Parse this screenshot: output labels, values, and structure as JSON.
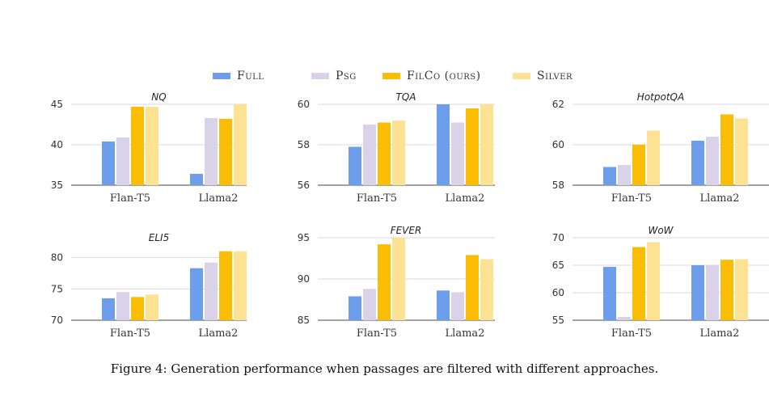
{
  "chart_data": [
    {
      "type": "bar",
      "title": "NQ",
      "categories": [
        "Flan-T5",
        "Llama2"
      ],
      "ylim": [
        35,
        45
      ],
      "yticks": [
        35,
        40,
        45
      ],
      "series": [
        {
          "name": "Full",
          "values": [
            40.4,
            36.4
          ]
        },
        {
          "name": "Psg",
          "values": [
            40.9,
            43.3
          ]
        },
        {
          "name": "FilCo (ours)",
          "values": [
            44.7,
            43.2
          ]
        },
        {
          "name": "Silver",
          "values": [
            44.7,
            45.0
          ]
        }
      ]
    },
    {
      "type": "bar",
      "title": "TQA",
      "categories": [
        "Flan-T5",
        "Llama2"
      ],
      "ylim": [
        56,
        60
      ],
      "yticks": [
        56,
        58,
        60
      ],
      "series": [
        {
          "name": "Full",
          "values": [
            57.9,
            60.0
          ]
        },
        {
          "name": "Psg",
          "values": [
            59.0,
            59.1
          ]
        },
        {
          "name": "FilCo (ours)",
          "values": [
            59.1,
            59.8
          ]
        },
        {
          "name": "Silver",
          "values": [
            59.2,
            60.0
          ]
        }
      ]
    },
    {
      "type": "bar",
      "title": "HotpotQA",
      "categories": [
        "Flan-T5",
        "Llama2"
      ],
      "ylim": [
        58,
        62
      ],
      "yticks": [
        58,
        60,
        62
      ],
      "series": [
        {
          "name": "Full",
          "values": [
            58.9,
            60.2
          ]
        },
        {
          "name": "Psg",
          "values": [
            59.0,
            60.4
          ]
        },
        {
          "name": "FilCo (ours)",
          "values": [
            60.0,
            61.5
          ]
        },
        {
          "name": "Silver",
          "values": [
            60.7,
            61.3
          ]
        }
      ]
    },
    {
      "type": "bar",
      "title": "ELI5",
      "categories": [
        "Flan-T5",
        "Llama2"
      ],
      "ylim": [
        70,
        82
      ],
      "yticks": [
        70,
        75,
        80
      ],
      "series": [
        {
          "name": "Full",
          "values": [
            73.5,
            78.3
          ]
        },
        {
          "name": "Psg",
          "values": [
            74.5,
            79.2
          ]
        },
        {
          "name": "FilCo (ours)",
          "values": [
            73.7,
            81.0
          ]
        },
        {
          "name": "Silver",
          "values": [
            74.1,
            81.0
          ]
        }
      ]
    },
    {
      "type": "bar",
      "title": "FEVER",
      "categories": [
        "Flan-T5",
        "Llama2"
      ],
      "ylim": [
        85,
        95
      ],
      "yticks": [
        85,
        90,
        95
      ],
      "series": [
        {
          "name": "Full",
          "values": [
            87.9,
            88.6
          ]
        },
        {
          "name": "Psg",
          "values": [
            88.8,
            88.4
          ]
        },
        {
          "name": "FilCo (ours)",
          "values": [
            94.2,
            92.9
          ]
        },
        {
          "name": "Silver",
          "values": [
            95.0,
            92.4
          ]
        }
      ]
    },
    {
      "type": "bar",
      "title": "WoW",
      "categories": [
        "Flan-T5",
        "Llama2"
      ],
      "ylim": [
        55,
        70
      ],
      "yticks": [
        55,
        60,
        65,
        70
      ],
      "series": [
        {
          "name": "Full",
          "values": [
            64.7,
            65.0
          ]
        },
        {
          "name": "Psg",
          "values": [
            55.6,
            65.0
          ]
        },
        {
          "name": "FilCo (ours)",
          "values": [
            68.3,
            66.0
          ]
        },
        {
          "name": "Silver",
          "values": [
            69.2,
            66.1
          ]
        }
      ]
    }
  ],
  "legend": [
    {
      "label": "Full",
      "color": "#6d9eeb"
    },
    {
      "label": "Psg",
      "color": "#d9d2e9"
    },
    {
      "label": "FilCo (ours)",
      "color": "#fbbc04"
    },
    {
      "label": "Silver",
      "color": "#fde293"
    }
  ],
  "caption": "Figure 4: Generation performance when passages are filtered with different approaches."
}
